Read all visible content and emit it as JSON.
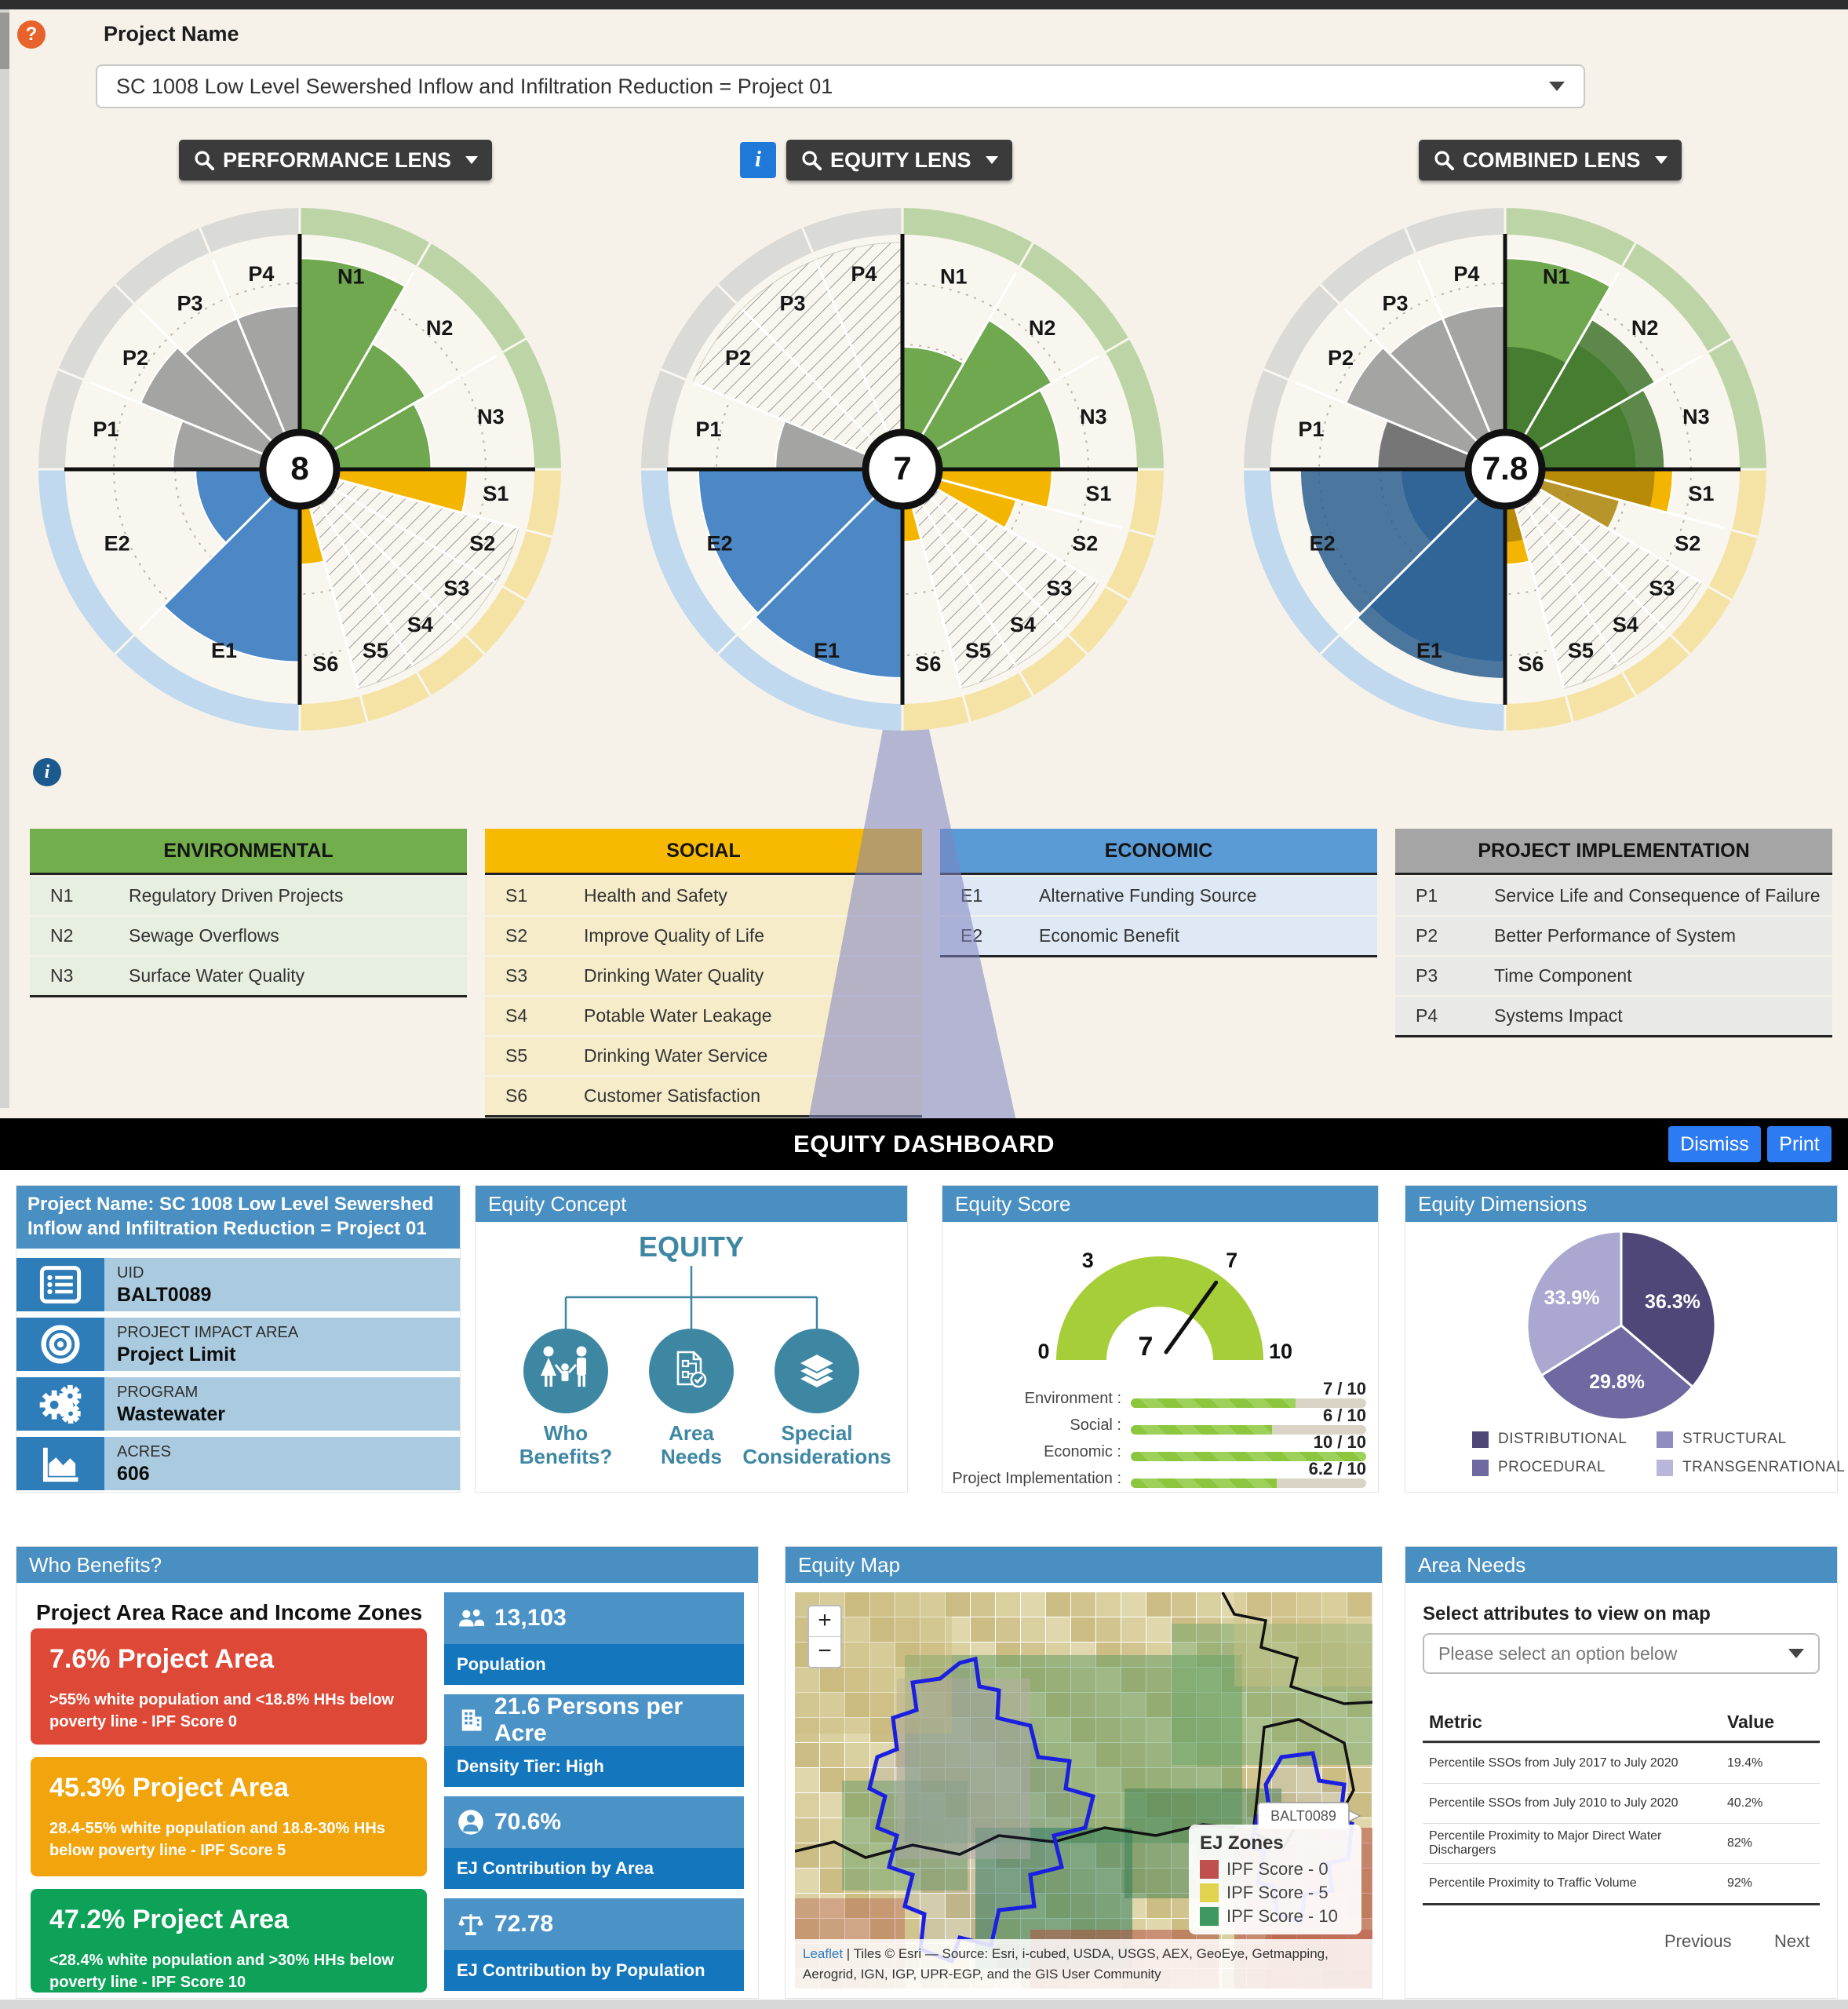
{
  "top": {
    "help_glyph": "?",
    "info_glyph": "i",
    "project_name_label": "Project Name",
    "project_select_value": "SC 1008 Low Level Sewershed Inflow and Infiltration Reduction = Project 01",
    "lens_buttons": [
      {
        "label": "PERFORMANCE LENS"
      },
      {
        "label": "EQUITY LENS"
      },
      {
        "label": "COMBINED LENS"
      }
    ]
  },
  "chart_data": {
    "type": "radial-score-wheel",
    "scale": [
      0,
      10
    ],
    "quadrants": [
      {
        "id": "environmental",
        "codes": [
          "N1",
          "N2",
          "N3"
        ],
        "arc": [
          0,
          90
        ],
        "ring_color": "#bdd5a6",
        "fill": "#6fa84e",
        "overlay_fill": "#41762d"
      },
      {
        "id": "social",
        "codes": [
          "S1",
          "S2",
          "S3",
          "S4",
          "S5",
          "S6"
        ],
        "arc": [
          90,
          180
        ],
        "ring_color": "#f5e3a6",
        "fill": "#f4b501",
        "overlay_fill": "#ab8408"
      },
      {
        "id": "economic",
        "codes": [
          "E1",
          "E2"
        ],
        "arc": [
          180,
          270
        ],
        "ring_color": "#c0d9ee",
        "fill": "#4d88c6",
        "overlay_fill": "#2d5f8e"
      },
      {
        "id": "project_implementation",
        "codes": [
          "P1",
          "P2",
          "P3",
          "P4"
        ],
        "arc": [
          270,
          360
        ],
        "ring_color": "#dadad6",
        "fill": "#a4a4a2",
        "overlay_fill": "#6f6f6f"
      }
    ],
    "charts": [
      {
        "id": "performance-lens",
        "center_score": "8",
        "values": {
          "N1": 9.3,
          "N2": 6.4,
          "N3": 5.8,
          "S1": 7.4,
          "S6": 4.2,
          "E1": 8.5,
          "E2": 4.6,
          "P1": 5.6,
          "P2": 7.6,
          "P3": 7.2,
          "P4": 7.2
        },
        "hatched": [
          "S2",
          "S3",
          "S4",
          "S5"
        ]
      },
      {
        "id": "equity-lens",
        "center_score": "7",
        "values": {
          "N1": 5.4,
          "N2": 7.6,
          "N3": 7.0,
          "S1": 6.6,
          "S2": 5.2,
          "S6": 3.2,
          "E1": 9.2,
          "E2": 9.0,
          "P1": 5.6
        },
        "hatched": [
          "S3",
          "S4",
          "S5",
          "P2",
          "P3",
          "P4"
        ]
      },
      {
        "id": "combined-lens",
        "center_score": "7.8",
        "values": {
          "N1": 9.3,
          "N2": 6.4,
          "N3": 5.8,
          "S1": 7.4,
          "S6": 4.2,
          "E1": 8.5,
          "E2": 4.6,
          "P1": 5.6,
          "P2": 7.6,
          "P3": 7.2,
          "P4": 7.2
        },
        "overlay_values": {
          "N1": 5.4,
          "N2": 7.6,
          "N3": 7.0,
          "S1": 6.6,
          "S2": 5.2,
          "S6": 3.2,
          "E1": 9.2,
          "E2": 9.0,
          "P1": 5.6
        },
        "hatched": [
          "S3",
          "S4",
          "S5"
        ]
      }
    ]
  },
  "legend_tables": [
    {
      "title": "ENVIRONMENTAL",
      "header_color": "#72ae4b",
      "row_bg": "#e7efe0",
      "rows": [
        [
          "N1",
          "Regulatory Driven Projects"
        ],
        [
          "N2",
          "Sewage Overflows"
        ],
        [
          "N3",
          "Surface Water Quality"
        ]
      ]
    },
    {
      "title": "SOCIAL",
      "header_color": "#f8ba00",
      "row_bg": "#f7ecc9",
      "rows": [
        [
          "S1",
          "Health and Safety"
        ],
        [
          "S2",
          "Improve Quality of Life"
        ],
        [
          "S3",
          "Drinking Water Quality"
        ],
        [
          "S4",
          "Potable Water Leakage"
        ],
        [
          "S5",
          "Drinking Water Service"
        ],
        [
          "S6",
          "Customer Satisfaction"
        ]
      ]
    },
    {
      "title": "ECONOMIC",
      "header_color": "#5b9bd5",
      "row_bg": "#dee9f5",
      "rows": [
        [
          "E1",
          "Alternative Funding Source"
        ],
        [
          "E2",
          "Economic Benefit"
        ]
      ]
    },
    {
      "title": "PROJECT IMPLEMENTATION",
      "header_color": "#a5a5a5",
      "row_bg": "#e9e9e7",
      "rows": [
        [
          "P1",
          "Service Life and Consequence of Failure"
        ],
        [
          "P2",
          "Better Performance of System"
        ],
        [
          "P3",
          "Time Component"
        ],
        [
          "P4",
          "Systems Impact"
        ]
      ]
    }
  ],
  "dashboard": {
    "title": "EQUITY DASHBOARD",
    "dismiss_label": "Dismiss",
    "print_label": "Print",
    "project_panel": {
      "title": "Project Name: SC 1008 Low Level Sewershed Inflow and Infiltration Reduction = Project 01",
      "rows": [
        {
          "icon": "list",
          "label": "UID",
          "value": "BALT0089"
        },
        {
          "icon": "target",
          "label": "PROJECT IMPACT AREA",
          "value": "Project Limit"
        },
        {
          "icon": "gears",
          "label": "PROGRAM",
          "value": "Wastewater"
        },
        {
          "icon": "area-chart",
          "label": "ACRES",
          "value": "606"
        }
      ]
    },
    "equity_concept": {
      "title": "Equity Concept",
      "heading": "EQUITY",
      "accent_color": "#3e87a3",
      "nodes": [
        {
          "icon": "family",
          "label": "Who Benefits?"
        },
        {
          "icon": "plan",
          "label": "Area Needs"
        },
        {
          "icon": "layers",
          "label": "Special Considerations"
        }
      ]
    },
    "equity_score": {
      "title": "Equity Score",
      "gauge": {
        "min": 0,
        "max": 10,
        "value": 7,
        "center_label": "7",
        "color": "#a5ce39",
        "tick_labels": [
          {
            "value": 0,
            "text": "0"
          },
          {
            "value": 3,
            "text": "3"
          },
          {
            "value": 7,
            "text": "7"
          },
          {
            "value": 10,
            "text": "10"
          }
        ]
      },
      "bars": [
        {
          "label": "Environment :",
          "value": 7,
          "max": 10,
          "display": "7 / 10"
        },
        {
          "label": "Social :",
          "value": 6,
          "max": 10,
          "display": "6 / 10"
        },
        {
          "label": "Economic :",
          "value": 10,
          "max": 10,
          "display": "10 / 10"
        },
        {
          "label": "Project Implementation :",
          "value": 6.2,
          "max": 10,
          "display": "6.2 / 10"
        }
      ]
    },
    "equity_dimensions": {
      "title": "Equity Dimensions",
      "pie": {
        "slices": [
          {
            "label": "36.3%",
            "pct": 36.3,
            "color": "#4f4777"
          },
          {
            "label": "29.8%",
            "pct": 29.8,
            "color": "#6f68a1"
          },
          {
            "label": "33.9%",
            "pct": 33.9,
            "color": "#aaa7d0"
          }
        ],
        "legend": [
          {
            "label": "DISTRIBUTIONAL",
            "color": "#4f4777"
          },
          {
            "label": "STRUCTURAL",
            "color": "#908cc0"
          },
          {
            "label": "PROCEDURAL",
            "color": "#6f68a1"
          },
          {
            "label": "TRANSGENRATIONAL",
            "color": "#b9b6da"
          }
        ]
      }
    },
    "who_benefits": {
      "title": "Who Benefits?",
      "subtitle": "Project Area Race and Income Zones",
      "zones": [
        {
          "pct_title": "7.6% Project Area",
          "desc": ">55% white population and <18.8% HHs below poverty line - IPF Score 0",
          "color": "#de4937"
        },
        {
          "pct_title": "45.3% Project Area",
          "desc": "28.4-55% white population and 18.8-30% HHs below poverty line - IPF Score 5",
          "color": "#f1a40b"
        },
        {
          "pct_title": "47.2% Project Area",
          "desc": "<28.4% white population and >30% HHs below poverty line - IPF Score 10",
          "color": "#0da258"
        }
      ],
      "stats": [
        {
          "icon": "people",
          "value": "13,103",
          "label": "Population"
        },
        {
          "icon": "building",
          "value": "21.6 Persons per Acre",
          "label": "Density Tier: High"
        },
        {
          "icon": "person",
          "value": "70.6%",
          "label": "EJ Contribution by Area"
        },
        {
          "icon": "scales",
          "value": "72.78",
          "label": "EJ Contribution by Population"
        }
      ]
    },
    "equity_map": {
      "title": "Equity Map",
      "zoom_in": "+",
      "zoom_out": "−",
      "marker_label": "BALT0089",
      "legend": {
        "title": "EJ Zones",
        "items": [
          {
            "label": "IPF Score - 0",
            "color": "#c0504d"
          },
          {
            "label": "IPF Score - 5",
            "color": "#e3d44f"
          },
          {
            "label": "IPF Score - 10",
            "color": "#3e9960"
          }
        ]
      },
      "attribution_leaflet": "Leaflet",
      "attribution_rest": " | Tiles © Esri — Source: Esri, i-cubed, USDA, USGS, AEX, GeoEye, Getmapping, Aerogrid, IGN, IGP, UPR-EGP, and the GIS User Community"
    },
    "area_needs": {
      "title": "Area Needs",
      "select_label": "Select attributes to view on map",
      "select_placeholder": "Please select an option below",
      "table": {
        "headers": [
          "Metric",
          "Value"
        ],
        "rows": [
          [
            "Percentile SSOs from July 2017 to July 2020",
            "19.4%"
          ],
          [
            "Percentile SSOs from July 2010 to July 2020",
            "40.2%"
          ],
          [
            "Percentile Proximity to Major Direct Water Dischargers",
            "82%"
          ],
          [
            "Percentile Proximity to Traffic Volume",
            "92%"
          ]
        ]
      },
      "pagination": {
        "previous": "Previous",
        "next": "Next"
      }
    }
  }
}
